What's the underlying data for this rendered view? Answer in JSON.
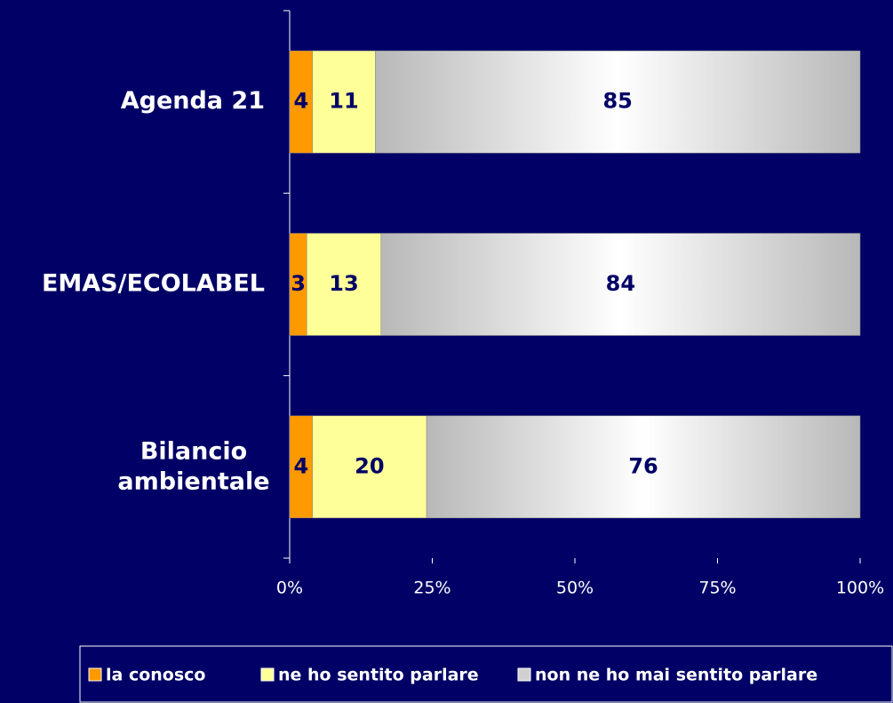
{
  "chart_data": {
    "type": "stacked_bar_horizontal",
    "categories": [
      "Agenda 21",
      "EMAS/ECOLABEL",
      "Bilancio\nambientale"
    ],
    "series": [
      {
        "name": "la conosco",
        "color": "#ff9900",
        "values": [
          4,
          3,
          4
        ]
      },
      {
        "name": "ne ho sentito parlare",
        "color": "#ffff99",
        "values": [
          11,
          13,
          20
        ]
      },
      {
        "name": "non ne ho mai sentito parlare",
        "color": "#c0c0c0",
        "values": [
          85,
          84,
          76
        ]
      }
    ],
    "xlim": [
      0,
      100
    ],
    "xticks": [
      {
        "value": 0,
        "label": "0%"
      },
      {
        "value": 25,
        "label": "25%"
      },
      {
        "value": 50,
        "label": "50%"
      },
      {
        "value": 75,
        "label": "75%"
      },
      {
        "value": 100,
        "label": "100%"
      }
    ],
    "legend": "bottom"
  }
}
